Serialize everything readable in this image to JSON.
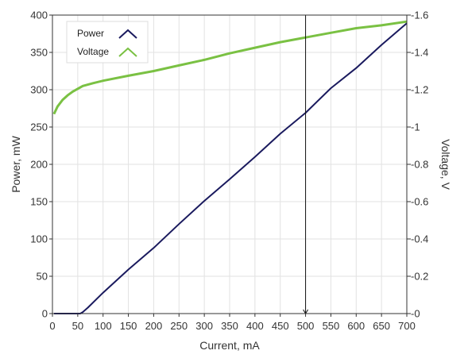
{
  "chart_data": {
    "type": "line",
    "title": "",
    "xlabel": "Current, mA",
    "ylabel_left": "Power, mW",
    "ylabel_right": "Voltage, V",
    "xlim": [
      0,
      700
    ],
    "ylim_left": [
      0,
      400
    ],
    "ylim_right": [
      0,
      1.6
    ],
    "x_ticks": [
      0,
      50,
      100,
      150,
      200,
      250,
      300,
      350,
      400,
      450,
      500,
      550,
      600,
      650,
      700
    ],
    "y_left_ticks": [
      0,
      50,
      100,
      150,
      200,
      250,
      300,
      350,
      400
    ],
    "y_right_ticks": [
      "0",
      "0.2",
      "0.4",
      "0.6",
      "0.8",
      "1",
      "1.2",
      "1.4",
      "1.6"
    ],
    "grid": true,
    "legend_position": "top-left",
    "cursor_x": 500,
    "colors": {
      "power": "#1a1a5e",
      "voltage": "#7ac143",
      "cursor": "#111111",
      "grid": "#e2e2e2"
    },
    "series": [
      {
        "name": "Power",
        "axis": "left",
        "x": [
          3,
          20,
          40,
          55,
          60,
          70,
          100,
          150,
          200,
          250,
          300,
          350,
          400,
          450,
          500,
          550,
          600,
          650,
          700
        ],
        "y": [
          0,
          0,
          0,
          0,
          2,
          8,
          28,
          59,
          88,
          120,
          151,
          180,
          210,
          241,
          269,
          302,
          329,
          360,
          389
        ]
      },
      {
        "name": "Voltage",
        "axis": "right",
        "x": [
          3,
          10,
          20,
          30,
          40,
          50,
          60,
          80,
          100,
          150,
          200,
          250,
          300,
          350,
          400,
          450,
          500,
          550,
          600,
          650,
          700
        ],
        "y": [
          1.07,
          1.11,
          1.145,
          1.17,
          1.19,
          1.205,
          1.22,
          1.235,
          1.248,
          1.275,
          1.3,
          1.33,
          1.36,
          1.395,
          1.425,
          1.455,
          1.48,
          1.505,
          1.53,
          1.545,
          1.565
        ]
      }
    ]
  }
}
